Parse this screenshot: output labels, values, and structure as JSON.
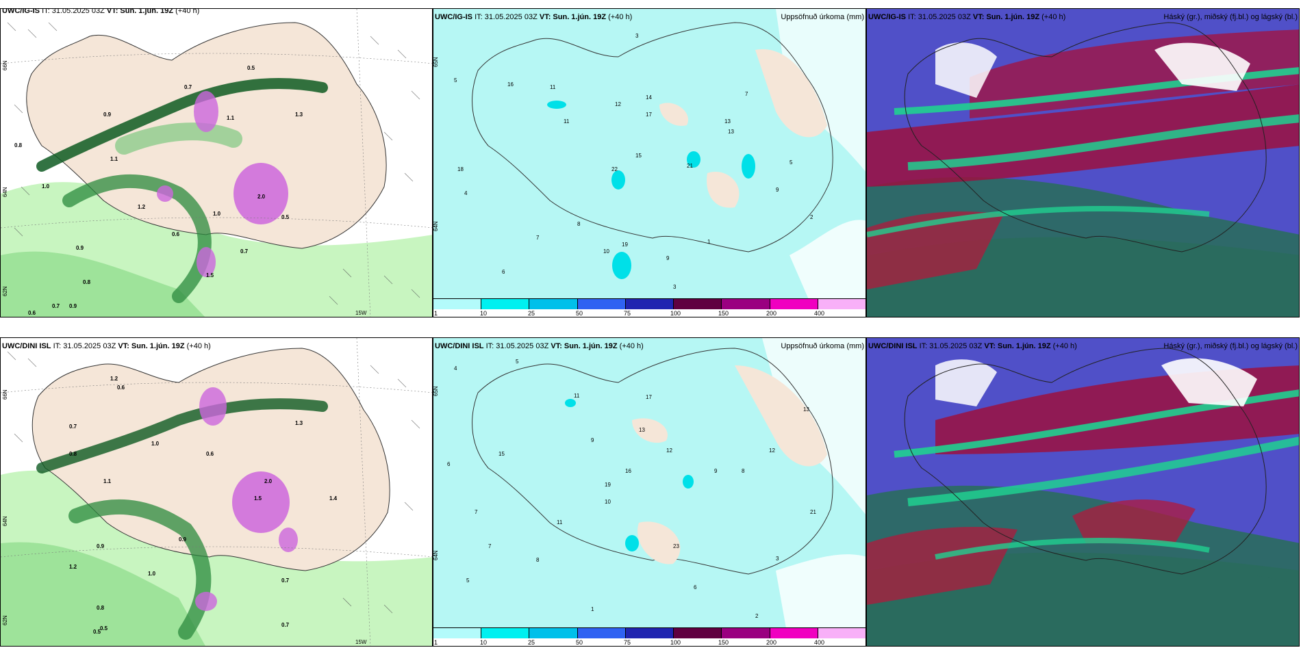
{
  "rows": [
    {
      "model": "UWC/IG-IS",
      "wind_panel": {
        "title_model": "UWC/IG-IS",
        "title_rest": "IT: 31.05.2025 03Z",
        "title_vt": "VT: Sun. 1.jún. 19Z",
        "title_lead": "(+40 h)",
        "lat_labels": [
          "66N",
          "64N",
          "62N"
        ],
        "lon_label": "15W",
        "values": [
          "0.5",
          "0.7",
          "0.9",
          "1.0",
          "1.3",
          "0.8",
          "0.6",
          "1.1",
          "2.0",
          "0.7",
          "1.2",
          "1.5",
          "0.9",
          "1.0",
          "0.8",
          "0.6",
          "0.7",
          "0.9",
          "1.1",
          "0.5"
        ]
      },
      "precip_panel": {
        "title_model": "UWC/IG-IS",
        "title_rest": "IT: 31.05.2025 03Z",
        "title_vt": "VT: Sun. 1.jún. 19Z",
        "title_lead": "(+40 h)",
        "right_label": "Uppsöfnuð úrkoma (mm)",
        "lat_labels": [
          "65N",
          "64N"
        ],
        "values": [
          "3",
          "4",
          "5",
          "6",
          "7",
          "8",
          "9",
          "10",
          "11",
          "12",
          "13",
          "14",
          "15",
          "16",
          "17",
          "18",
          "19",
          "21",
          "22",
          "1",
          "2",
          "3",
          "5",
          "7",
          "9",
          "11",
          "13"
        ]
      },
      "cloud_panel": {
        "title_model": "UWC/IG-IS",
        "title_rest": "IT: 31.05.2025 03Z",
        "title_vt": "VT: Sun. 1.jún. 19Z",
        "title_lead": "(+40 h)",
        "right_label": "Háský (gr.), miðský (fj.bl.) og lágský (bl.)"
      }
    },
    {
      "model": "UWC/DINI ISL",
      "wind_panel": {
        "title_model": "UWC/DINI ISL",
        "title_rest": "IT: 31.05.2025 03Z",
        "title_vt": "VT: Sun. 1.jún. 19Z",
        "title_lead": "(+40 h)",
        "lat_labels": [
          "66N",
          "64N",
          "62N"
        ],
        "lon_label": "15W",
        "values": [
          "1.2",
          "0.6",
          "0.7",
          "0.8",
          "1.0",
          "1.1",
          "0.9",
          "1.3",
          "0.5",
          "1.5",
          "2.0",
          "0.7",
          "1.2",
          "0.6",
          "1.0",
          "0.8",
          "0.9",
          "1.4",
          "0.7",
          "0.5"
        ]
      },
      "precip_panel": {
        "title_model": "UWC/DINI ISL",
        "title_rest": "IT: 31.05.2025 03Z",
        "title_vt": "VT: Sun. 1.jún. 19Z",
        "title_lead": "(+40 h)",
        "right_label": "Uppsöfnuð úrkoma (mm)",
        "lat_labels": [
          "65N",
          "64N"
        ],
        "values": [
          "4",
          "5",
          "6",
          "7",
          "8",
          "9",
          "10",
          "11",
          "12",
          "13",
          "15",
          "17",
          "19",
          "21",
          "23",
          "1",
          "2",
          "3",
          "5",
          "7",
          "9",
          "11",
          "13",
          "16",
          "12",
          "8",
          "6"
        ]
      },
      "cloud_panel": {
        "title_model": "UWC/DINI ISL",
        "title_rest": "IT: 31.05.2025 03Z",
        "title_vt": "VT: Sun. 1.jún. 19Z",
        "title_lead": "(+40 h)",
        "right_label": "Háský (gr.), miðský (fj.bl.) og lágský (bl.)"
      }
    }
  ],
  "legend": {
    "ticks": [
      "1",
      "10",
      "25",
      "50",
      "75",
      "100",
      "150",
      "200",
      "400"
    ],
    "colors": [
      "#b3fbfb",
      "#00f0f0",
      "#00c0ea",
      "#2f62f2",
      "#2024b0",
      "#600040",
      "#9a0080",
      "#f000c0",
      "#f8b0f8"
    ]
  },
  "colors": {
    "land": "#f5e6d8",
    "precip_light": "#b6f7f4",
    "green_light": "#c8f5c0",
    "green_mid": "#5cc06a",
    "green_dark": "#0e5a22",
    "magenta": "#cc66dd",
    "high_cloud": "#2a6b5e",
    "mid_cloud": "#9b1040",
    "low_cloud": "#5050c8",
    "cloud_green": "#20d090"
  }
}
